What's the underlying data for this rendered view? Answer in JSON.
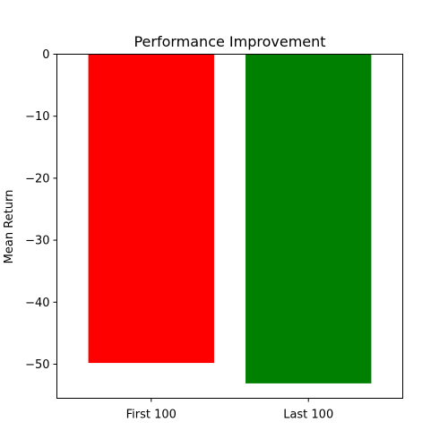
{
  "chart_data": {
    "type": "bar",
    "title": "Performance Improvement",
    "xlabel": "",
    "ylabel": "Mean Return",
    "categories": [
      "First 100",
      "Last 100"
    ],
    "values": [
      -49.8,
      -53.1
    ],
    "bar_colors": [
      "#ff0000",
      "#008000"
    ],
    "ylim": [
      -55.5,
      0
    ],
    "yticks": [
      0,
      -10,
      -20,
      -30,
      -40,
      -50
    ],
    "ytick_labels": [
      "0",
      "−10",
      "−20",
      "−30",
      "−40",
      "−50"
    ],
    "grid": false,
    "legend": "none"
  }
}
